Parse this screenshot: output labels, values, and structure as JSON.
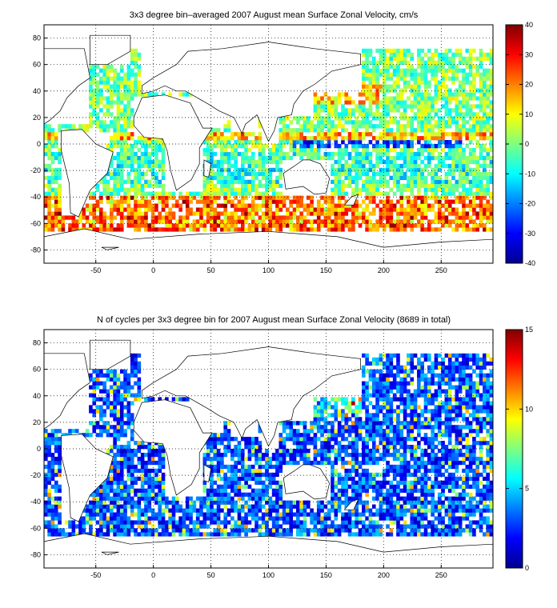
{
  "chart_data": [
    {
      "type": "heatmap",
      "title": "3x3 degree bin–averaged 2007 August mean Surface Zonal Velocity, cm/s",
      "xlim": [
        -95,
        295
      ],
      "ylim": [
        -90,
        90
      ],
      "xticks": [
        -50,
        0,
        50,
        100,
        150,
        200,
        250
      ],
      "yticks": [
        -80,
        -60,
        -40,
        -20,
        0,
        20,
        40,
        60,
        80
      ],
      "bin_size_deg": 3,
      "grid": true,
      "colormap": "jet",
      "colorbar": {
        "min": -40,
        "max": 40,
        "ticks": [
          40,
          30,
          20,
          10,
          0,
          -10,
          -20,
          -30,
          -40
        ]
      }
    },
    {
      "type": "heatmap",
      "title": "N of cycles per 3x3 degree bin for 2007 August mean Surface Zonal Velocity (8689 in total)",
      "xlim": [
        -95,
        295
      ],
      "ylim": [
        -90,
        90
      ],
      "xticks": [
        -50,
        0,
        50,
        100,
        150,
        200,
        250
      ],
      "yticks": [
        -80,
        -60,
        -40,
        -20,
        0,
        20,
        40,
        60,
        80
      ],
      "bin_size_deg": 3,
      "grid": true,
      "colormap": "jet",
      "colorbar": {
        "min": 0,
        "max": 15,
        "ticks": [
          15,
          10,
          5,
          0
        ]
      }
    }
  ]
}
